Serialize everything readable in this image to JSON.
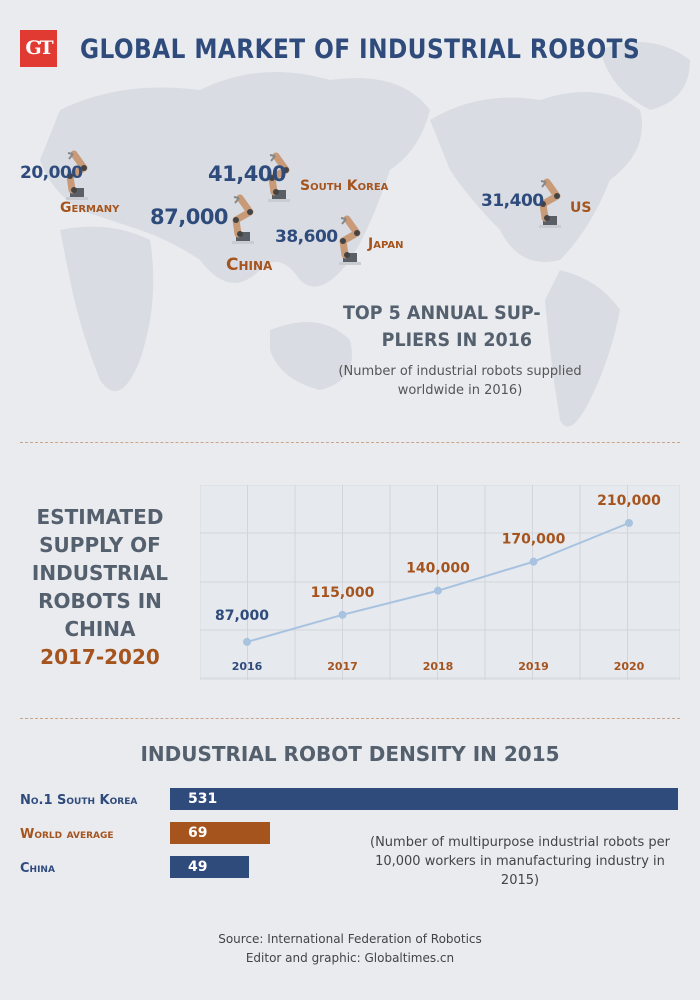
{
  "header": {
    "logo": "GT",
    "title": "GLOBAL MARKET OF INDUSTRIAL ROBOTS"
  },
  "map": {
    "suppliers": [
      {
        "country": "Germany",
        "value": "20,000"
      },
      {
        "country": "South Korea",
        "value": "41,400"
      },
      {
        "country": "China",
        "value": "87,000"
      },
      {
        "country": "Japan",
        "value": "38,600"
      },
      {
        "country": "US",
        "value": "31,400"
      }
    ],
    "heading": "TOP 5 ANNUAL SUP-PLIERS IN 2016",
    "heading_line1": "TOP 5 ANNUAL SUP-",
    "heading_line2": "PLIERS IN 2016",
    "note": "(Number of industrial robots supplied worldwide in 2016)"
  },
  "estimate": {
    "line1": "ESTIMATED",
    "line2": "SUPPLY OF",
    "line3": "INDUSTRIAL",
    "line4": "ROBOTS IN",
    "line5": "CHINA",
    "years": "2017-2020"
  },
  "chart_data": {
    "type": "line",
    "title": "Estimated supply of industrial robots in China 2017-2020",
    "categories": [
      "2016",
      "2017",
      "2018",
      "2019",
      "2020"
    ],
    "values": [
      87000,
      115000,
      140000,
      170000,
      210000
    ],
    "labels": [
      "87,000",
      "115,000",
      "140,000",
      "170,000",
      "210,000"
    ],
    "ylim": [
      60000,
      240000
    ],
    "grid": true,
    "colors": {
      "line": "#a8c3e0",
      "actual": "#2f4b7c",
      "estimate": "#a6541e"
    }
  },
  "density": {
    "title": "INDUSTRIAL ROBOT DENSITY IN 2015",
    "max": 531,
    "rows": [
      {
        "label": "No.1   South Korea",
        "value": 531,
        "color": "#2f4b7c",
        "labelColor": "#2f4b7c"
      },
      {
        "label": "World average",
        "value": 69,
        "color": "#a6541e",
        "labelColor": "#a6541e"
      },
      {
        "label": "China",
        "value": 49,
        "color": "#2f4b7c",
        "labelColor": "#2f4b7c"
      }
    ],
    "note": "(Number of multipurpose industrial robots per 10,000 workers in manufacturing industry in 2015)"
  },
  "footer": {
    "source": "Source: International Federation of Robotics",
    "credit": "Editor and graphic: Globaltimes.cn"
  }
}
